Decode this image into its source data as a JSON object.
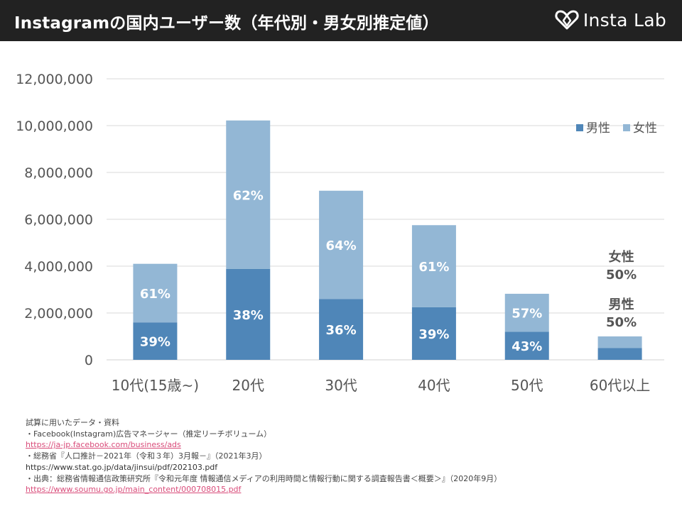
{
  "header": {
    "title": "Instagramの国内ユーザー数（年代別・男女別推定値）",
    "brand": "Insta Lab"
  },
  "colors": {
    "male": "#4f86b8",
    "female": "#93b7d5",
    "header_bg": "#222222",
    "link": "#d94c7a"
  },
  "chart_data": {
    "type": "bar",
    "stacked": true,
    "title": "Instagramの国内ユーザー数（年代別・男女別推定値）",
    "categories": [
      "10代(15歳~)",
      "20代",
      "30代",
      "40代",
      "50代",
      "60代以上"
    ],
    "series": [
      {
        "name": "男性",
        "values": [
          1600000,
          3880000,
          2600000,
          2250000,
          1200000,
          500000
        ],
        "percent_labels": [
          "39%",
          "38%",
          "36%",
          "39%",
          "43%",
          "男性\n50%"
        ]
      },
      {
        "name": "女性",
        "values": [
          2500000,
          6340000,
          4620000,
          3500000,
          1620000,
          500000
        ],
        "percent_labels": [
          "61%",
          "62%",
          "64%",
          "61%",
          "57%",
          "女性\n50%"
        ]
      }
    ],
    "ylim": [
      0,
      12000000
    ],
    "yticks": [
      "0",
      "2,000,000",
      "4,000,000",
      "6,000,000",
      "8,000,000",
      "10,000,000",
      "12,000,000"
    ],
    "grid": true,
    "legend_position": "top-right"
  },
  "sources": {
    "heading": "試算に用いたデータ・資料",
    "items": [
      {
        "label": "・Facebook(Instagram)広告マネージャー（推定リーチボリューム）",
        "url": "https://ja-jp.facebook.com/business/ads"
      },
      {
        "label": "・総務省『人口推計－2021年（令和３年）3月報－』（2021年3月）",
        "url": "https://www.stat.go.jp/data/jinsui/pdf/202103.pdf"
      },
      {
        "label": "・出典：総務省情報通信政策研究所『令和元年度 情報通信メディアの利用時間と情報行動に関する調査報告書＜概要＞』（2020年9月）",
        "url": "https://www.soumu.go.jp/main_content/000708015.pdf"
      }
    ]
  }
}
